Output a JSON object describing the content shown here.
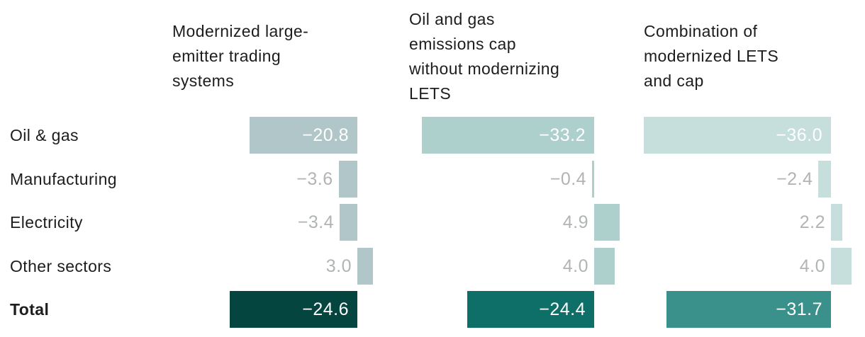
{
  "chart_data": {
    "type": "bar",
    "orientation": "horizontal-diverging",
    "title": "",
    "grid": false,
    "legend_position": "none",
    "categories": [
      "Oil & gas",
      "Manufacturing",
      "Electricity",
      "Other sectors",
      "Total"
    ],
    "series": [
      {
        "name": "Modernized large-emitter trading systems",
        "name_lines": [
          "Modernized large-",
          "emitter trading",
          "systems"
        ],
        "values": [
          -20.8,
          -3.6,
          -3.4,
          3.0,
          -24.6
        ],
        "value_labels": [
          "−20.8",
          "−3.6",
          "−3.4",
          "3.0",
          "−24.6"
        ]
      },
      {
        "name": "Oil and gas emissions cap without modernizing LETS",
        "name_lines": [
          "Oil and gas",
          "emissions cap",
          "without modernizing",
          "LETS"
        ],
        "values": [
          -33.2,
          -0.4,
          4.9,
          4.0,
          -24.4
        ],
        "value_labels": [
          "−33.2",
          "−0.4",
          "4.9",
          "4.0",
          "−24.4"
        ]
      },
      {
        "name": "Combination of modernized LETS and cap",
        "name_lines": [
          "Combination of",
          "modernized LETS",
          "and cap"
        ],
        "values": [
          -36.0,
          -2.4,
          2.2,
          4.0,
          -31.7
        ],
        "value_labels": [
          "−36.0",
          "−2.4",
          "2.2",
          "4.0",
          "−31.7"
        ]
      }
    ]
  },
  "colors": {
    "bar_fill": [
      "#b0c6c8",
      "#aed0cc",
      "#c6dfdd"
    ],
    "total_fill": [
      "#04463f",
      "#0e6f68",
      "#3a918b"
    ],
    "value_inside": "#ffffff",
    "value_outside": "#b1b4b5",
    "label_text": "#1d1d1d",
    "background": "#ffffff"
  }
}
